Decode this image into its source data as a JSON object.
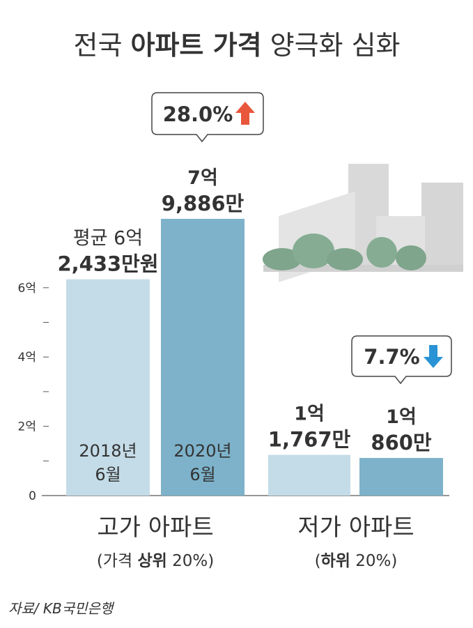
{
  "chart_data": {
    "type": "bar",
    "title": [
      {
        "text": "전국 ",
        "bold": false
      },
      {
        "text": "아파트 가격",
        "bold": true
      },
      {
        "text": " 양극화 심화",
        "bold": false
      }
    ],
    "categories": [
      "2018년 6월",
      "2020년 6월",
      null,
      null
    ],
    "values": [
      6.2433,
      7.9886,
      1.1767,
      1.086
    ],
    "value_labels": [
      [
        "평균 6억",
        "2,433만원"
      ],
      [
        "7억",
        "9,886만"
      ],
      [
        "1억",
        "1,767만"
      ],
      [
        "1억",
        "860만"
      ]
    ],
    "colors": [
      "#c4dce7",
      "#7db2ca",
      "#c4dce7",
      "#7db2ca"
    ],
    "ylim": [
      0,
      8
    ],
    "yticks": [
      0,
      {
        "value": 2,
        "label": "2억"
      },
      {
        "value": 4,
        "label": "4억"
      },
      {
        "value": 6,
        "label": "6억"
      }
    ],
    "yminorticks": [
      1,
      3,
      5
    ],
    "groups": [
      {
        "label": "고가 아파트",
        "sublabel": [
          {
            "text": "(가격 ",
            "bold": false
          },
          {
            "text": "상위",
            "bold": true
          },
          {
            "text": " 20%)",
            "bold": false
          }
        ]
      },
      {
        "label": "저가 아파트",
        "sublabel": [
          {
            "text": "(",
            "bold": false
          },
          {
            "text": "하위",
            "bold": true
          },
          {
            "text": " 20%)",
            "bold": false
          }
        ]
      }
    ],
    "changes": [
      {
        "value": 28.0,
        "label": "28.0%",
        "direction": "up",
        "color": "#e8573c"
      },
      {
        "value": 7.7,
        "label": "7.7%",
        "direction": "down",
        "color": "#2a93d5"
      }
    ],
    "source": "자료/ KB국민은행"
  }
}
